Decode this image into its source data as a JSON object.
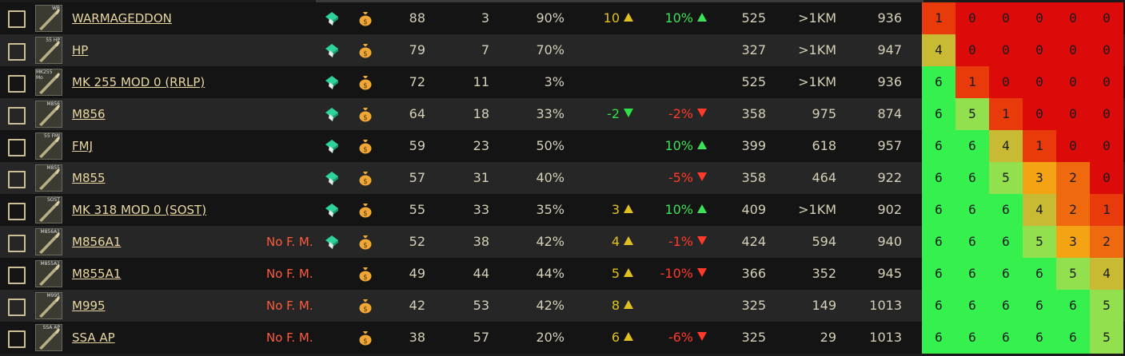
{
  "colors": {
    "a0": "#dd0a0a",
    "a1": "#e83a0a",
    "a2": "#ef6a0e",
    "a3": "#f3a313",
    "a4": "#c8bb33",
    "a5": "#92e04d",
    "a6": "#36f04e"
  },
  "rows": [
    {
      "name": "WARMAGEDDON",
      "tag": "WB",
      "nofm": "",
      "flea": true,
      "dmg": "88",
      "pen": "3",
      "frag": "90%",
      "rec": "10",
      "rec_dir": "up",
      "acc": "10%",
      "acc_dir": "up",
      "spd": "525",
      "rng": ">1KM",
      "mv": "936",
      "armor": [
        1,
        0,
        0,
        0,
        0,
        0
      ]
    },
    {
      "name": "HP",
      "tag": "55 HP",
      "nofm": "",
      "flea": true,
      "dmg": "79",
      "pen": "7",
      "frag": "70%",
      "rec": "",
      "rec_dir": "",
      "acc": "",
      "acc_dir": "",
      "spd": "327",
      "rng": ">1KM",
      "mv": "947",
      "armor": [
        4,
        0,
        0,
        0,
        0,
        0
      ]
    },
    {
      "name": "MK 255 MOD 0 (RRLP)",
      "tag": "MK255 Mo",
      "nofm": "",
      "flea": true,
      "dmg": "72",
      "pen": "11",
      "frag": "3%",
      "rec": "",
      "rec_dir": "",
      "acc": "",
      "acc_dir": "",
      "spd": "525",
      "rng": ">1KM",
      "mv": "936",
      "armor": [
        6,
        1,
        0,
        0,
        0,
        0
      ]
    },
    {
      "name": "M856",
      "tag": "M856",
      "nofm": "",
      "flea": true,
      "dmg": "64",
      "pen": "18",
      "frag": "33%",
      "rec": "-2",
      "rec_dir": "down",
      "acc": "-2%",
      "acc_dir": "down",
      "spd": "358",
      "rng": "975",
      "mv": "874",
      "armor": [
        6,
        5,
        1,
        0,
        0,
        0
      ]
    },
    {
      "name": "FMJ",
      "tag": "55 FMJ",
      "nofm": "",
      "flea": true,
      "dmg": "59",
      "pen": "23",
      "frag": "50%",
      "rec": "",
      "rec_dir": "",
      "acc": "10%",
      "acc_dir": "up",
      "spd": "399",
      "rng": "618",
      "mv": "957",
      "armor": [
        6,
        6,
        4,
        1,
        0,
        0
      ]
    },
    {
      "name": "M855",
      "tag": "M855",
      "nofm": "",
      "flea": true,
      "dmg": "57",
      "pen": "31",
      "frag": "40%",
      "rec": "",
      "rec_dir": "",
      "acc": "-5%",
      "acc_dir": "down",
      "spd": "358",
      "rng": "464",
      "mv": "922",
      "armor": [
        6,
        6,
        5,
        3,
        2,
        0
      ]
    },
    {
      "name": "MK 318 MOD 0 (SOST)",
      "tag": "SOST",
      "nofm": "",
      "flea": true,
      "dmg": "55",
      "pen": "33",
      "frag": "35%",
      "rec": "3",
      "rec_dir": "up",
      "acc": "10%",
      "acc_dir": "up",
      "spd": "409",
      "rng": ">1KM",
      "mv": "902",
      "armor": [
        6,
        6,
        6,
        4,
        2,
        1
      ]
    },
    {
      "name": "M856A1",
      "tag": "M856A1",
      "nofm": "No F. M.",
      "flea": true,
      "dmg": "52",
      "pen": "38",
      "frag": "42%",
      "rec": "4",
      "rec_dir": "up",
      "acc": "-1%",
      "acc_dir": "down",
      "spd": "424",
      "rng": "594",
      "mv": "940",
      "armor": [
        6,
        6,
        6,
        5,
        3,
        2
      ]
    },
    {
      "name": "M855A1",
      "tag": "M855A1",
      "nofm": "No F. M.",
      "flea": false,
      "dmg": "49",
      "pen": "44",
      "frag": "44%",
      "rec": "5",
      "rec_dir": "up",
      "acc": "-10%",
      "acc_dir": "down",
      "spd": "366",
      "rng": "352",
      "mv": "945",
      "armor": [
        6,
        6,
        6,
        6,
        5,
        4
      ]
    },
    {
      "name": "M995",
      "tag": "M995",
      "nofm": "No F. M.",
      "flea": false,
      "dmg": "42",
      "pen": "53",
      "frag": "42%",
      "rec": "8",
      "rec_dir": "up",
      "acc": "",
      "acc_dir": "",
      "spd": "325",
      "rng": "149",
      "mv": "1013",
      "armor": [
        6,
        6,
        6,
        6,
        6,
        5
      ]
    },
    {
      "name": "SSA AP",
      "tag": "SSA AP",
      "nofm": "No F. M.",
      "flea": false,
      "dmg": "38",
      "pen": "57",
      "frag": "20%",
      "rec": "6",
      "rec_dir": "up",
      "acc": "-6%",
      "acc_dir": "down",
      "spd": "325",
      "rng": "29",
      "mv": "1013",
      "armor": [
        6,
        6,
        6,
        6,
        6,
        5
      ]
    }
  ]
}
